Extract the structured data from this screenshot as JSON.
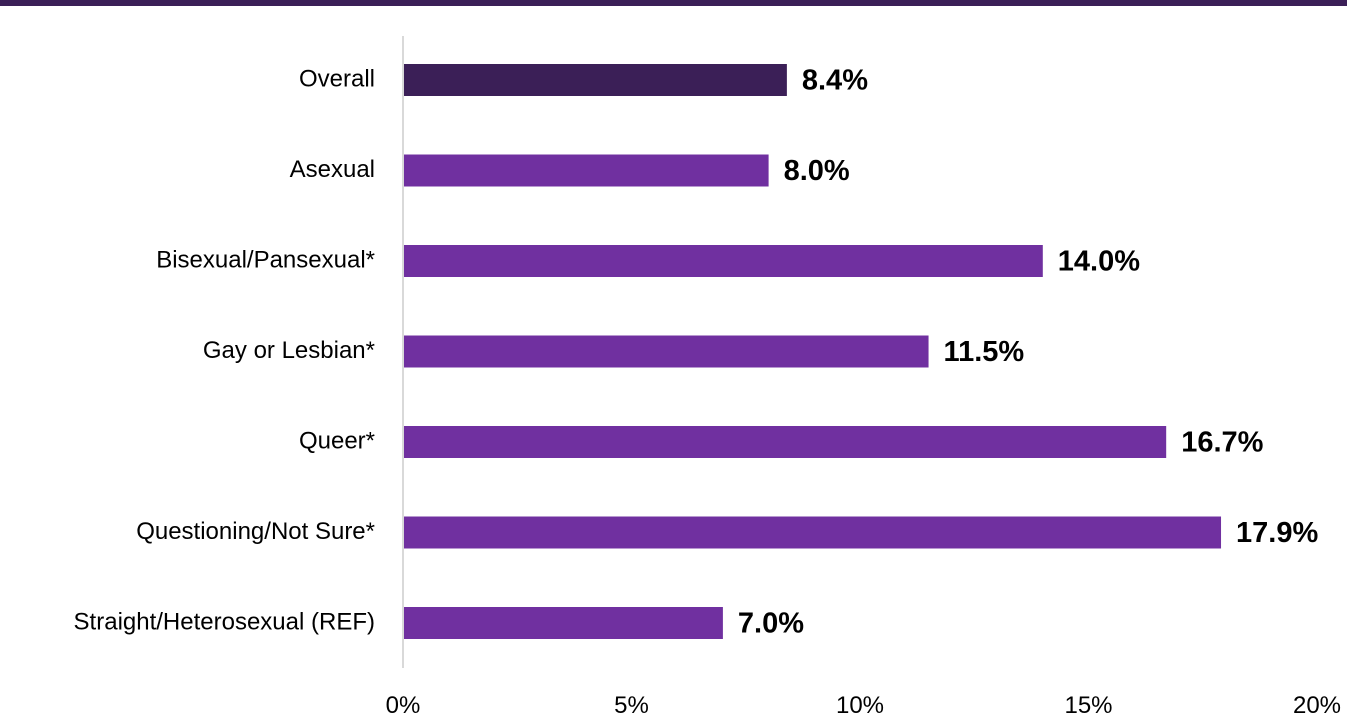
{
  "chart_data": {
    "type": "bar",
    "orientation": "horizontal",
    "categories": [
      "Overall",
      "Asexual",
      "Bisexual/Pansexual*",
      "Gay or Lesbian*",
      "Queer*",
      "Questioning/Not Sure*",
      "Straight/Heterosexual (REF)"
    ],
    "values": [
      8.4,
      8.0,
      14.0,
      11.5,
      16.7,
      17.9,
      7.0
    ],
    "value_labels": [
      "8.4%",
      "8.0%",
      "14.0%",
      "11.5%",
      "16.7%",
      "17.9%",
      "7.0%"
    ],
    "xlim": [
      0,
      20
    ],
    "xticks": [
      0,
      5,
      10,
      15,
      20
    ],
    "xtick_labels": [
      "0%",
      "5%",
      "10%",
      "15%",
      "20%"
    ],
    "grid": false,
    "colors": {
      "highlight": "#3b1f57",
      "bar": "#7030a0",
      "axis": "#d9d9d9",
      "band": "#3b1f57"
    }
  }
}
